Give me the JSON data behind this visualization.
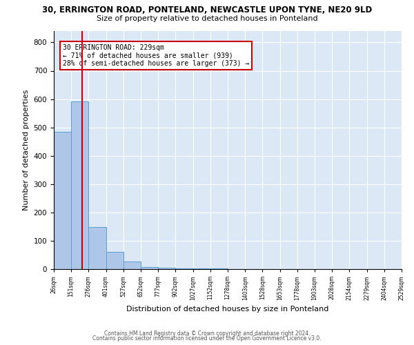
{
  "title1": "30, ERRINGTON ROAD, PONTELAND, NEWCASTLE UPON TYNE, NE20 9LD",
  "title2": "Size of property relative to detached houses in Ponteland",
  "xlabel": "Distribution of detached houses by size in Ponteland",
  "ylabel": "Number of detached properties",
  "bin_edges": [
    26,
    151,
    276,
    401,
    527,
    652,
    777,
    902,
    1027,
    1152,
    1278,
    1403,
    1528,
    1653,
    1778,
    1903,
    2028,
    2154,
    2279,
    2404,
    2529
  ],
  "bin_heights": [
    484,
    591,
    148,
    62,
    26,
    8,
    4,
    3,
    2,
    2,
    1,
    1,
    1,
    0,
    0,
    1,
    0,
    0,
    0,
    0
  ],
  "bar_color": "#aec6e8",
  "bar_edgecolor": "#5a9fd4",
  "vline_x": 229,
  "vline_color": "#cc0000",
  "annotation_line1": "30 ERRINGTON ROAD: 229sqm",
  "annotation_line2": "← 71% of detached houses are smaller (939)",
  "annotation_line3": "28% of semi-detached houses are larger (373) →",
  "ylim": [
    0,
    840
  ],
  "yticks": [
    0,
    100,
    200,
    300,
    400,
    500,
    600,
    700,
    800
  ],
  "footer1": "Contains HM Land Registry data © Crown copyright and database right 2024.",
  "footer2": "Contains public sector information licensed under the Open Government Licence v3.0.",
  "background_color": "#ffffff",
  "plot_bg_color": "#dce8f5"
}
